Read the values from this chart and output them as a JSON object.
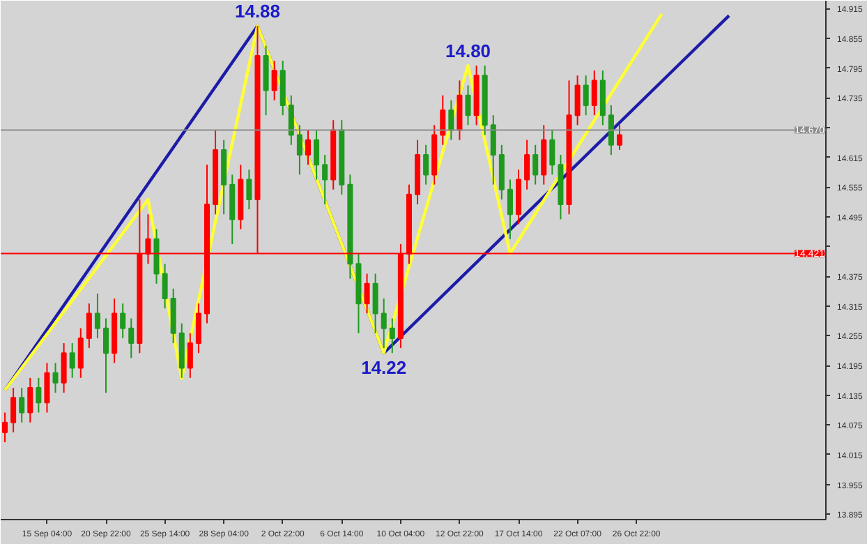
{
  "chart_data": {
    "type": "candlestick",
    "categories": [
      null,
      null,
      null,
      null,
      null,
      "15 Sep 04:00",
      null,
      null,
      null,
      null,
      null,
      null,
      "20 Sep 22:00",
      null,
      null,
      null,
      null,
      null,
      null,
      "25 Sep 14:00",
      null,
      null,
      null,
      null,
      null,
      null,
      "28 Sep 04:00",
      null,
      null,
      null,
      null,
      null,
      null,
      "2 Oct 22:00",
      null,
      null,
      null,
      null,
      null,
      null,
      "6 Oct 14:00",
      null,
      null,
      null,
      null,
      null,
      null,
      "10 Oct 04:00",
      null,
      null,
      null,
      null,
      null,
      null,
      "12 Oct 22:00",
      null,
      null,
      null,
      null,
      null,
      null,
      "17 Oct 14:00",
      null,
      null,
      null,
      null,
      null,
      null,
      "22 Oct 07:00",
      null,
      null,
      null,
      null,
      null,
      null,
      "26 Oct 22:00",
      null,
      null,
      null,
      null,
      null,
      null,
      null,
      null,
      null,
      null,
      null,
      null,
      null,
      null,
      null,
      null,
      null,
      null,
      null,
      null,
      null,
      null
    ],
    "ohlc": [
      [
        14.06,
        14.1,
        14.04,
        14.08
      ],
      [
        14.08,
        14.15,
        14.06,
        14.13
      ],
      [
        14.13,
        14.15,
        14.08,
        14.1
      ],
      [
        14.1,
        14.17,
        14.08,
        14.15
      ],
      [
        14.15,
        14.17,
        14.1,
        14.12
      ],
      [
        14.12,
        14.2,
        14.1,
        14.18
      ],
      [
        14.18,
        14.2,
        14.14,
        14.16
      ],
      [
        14.16,
        14.24,
        14.14,
        14.22
      ],
      [
        14.22,
        14.24,
        14.17,
        14.19
      ],
      [
        14.19,
        14.27,
        14.17,
        14.25
      ],
      [
        14.25,
        14.32,
        14.23,
        14.3
      ],
      [
        14.3,
        14.34,
        14.25,
        14.27
      ],
      [
        14.27,
        14.29,
        14.14,
        14.22
      ],
      [
        14.22,
        14.33,
        14.2,
        14.3
      ],
      [
        14.3,
        14.32,
        14.25,
        14.27
      ],
      [
        14.27,
        14.29,
        14.21,
        14.24
      ],
      [
        14.24,
        14.53,
        14.22,
        14.42
      ],
      [
        14.42,
        14.5,
        14.4,
        14.45
      ],
      [
        14.45,
        14.47,
        14.36,
        14.38
      ],
      [
        14.38,
        14.4,
        14.31,
        14.33
      ],
      [
        14.33,
        14.35,
        14.24,
        14.26
      ],
      [
        14.26,
        14.28,
        14.17,
        14.19
      ],
      [
        14.19,
        14.26,
        14.17,
        14.24
      ],
      [
        14.24,
        14.32,
        14.22,
        14.3
      ],
      [
        14.3,
        14.6,
        14.28,
        14.52
      ],
      [
        14.52,
        14.67,
        14.5,
        14.63
      ],
      [
        14.63,
        14.65,
        14.5,
        14.56
      ],
      [
        14.56,
        14.58,
        14.44,
        14.49
      ],
      [
        14.49,
        14.6,
        14.47,
        14.57
      ],
      [
        14.57,
        14.59,
        14.51,
        14.53
      ],
      [
        14.53,
        14.88,
        14.42,
        14.82
      ],
      [
        14.82,
        14.84,
        14.7,
        14.75
      ],
      [
        14.75,
        14.81,
        14.73,
        14.79
      ],
      [
        14.79,
        14.81,
        14.7,
        14.72
      ],
      [
        14.72,
        14.74,
        14.64,
        14.66
      ],
      [
        14.66,
        14.68,
        14.58,
        14.62
      ],
      [
        14.62,
        14.67,
        14.6,
        14.65
      ],
      [
        14.65,
        14.67,
        14.57,
        14.6
      ],
      [
        14.6,
        14.62,
        14.52,
        14.57
      ],
      [
        14.57,
        14.69,
        14.55,
        14.67
      ],
      [
        14.67,
        14.69,
        14.54,
        14.56
      ],
      [
        14.56,
        14.58,
        14.37,
        14.4
      ],
      [
        14.4,
        14.42,
        14.26,
        14.32
      ],
      [
        14.32,
        14.38,
        14.3,
        14.36
      ],
      [
        14.36,
        14.38,
        14.26,
        14.3
      ],
      [
        14.3,
        14.33,
        14.23,
        14.27
      ],
      [
        14.27,
        14.29,
        14.22,
        14.25
      ],
      [
        14.25,
        14.44,
        14.23,
        14.42
      ],
      [
        14.42,
        14.56,
        14.4,
        14.54
      ],
      [
        14.54,
        14.65,
        14.52,
        14.62
      ],
      [
        14.62,
        14.64,
        14.56,
        14.58
      ],
      [
        14.58,
        14.68,
        14.56,
        14.66
      ],
      [
        14.66,
        14.74,
        14.64,
        14.71
      ],
      [
        14.71,
        14.73,
        14.65,
        14.67
      ],
      [
        14.67,
        14.77,
        14.65,
        14.74
      ],
      [
        14.74,
        14.76,
        14.68,
        14.7
      ],
      [
        14.7,
        14.8,
        14.68,
        14.78
      ],
      [
        14.78,
        14.8,
        14.66,
        14.68
      ],
      [
        14.68,
        14.7,
        14.56,
        14.62
      ],
      [
        14.62,
        14.64,
        14.53,
        14.55
      ],
      [
        14.55,
        14.57,
        14.45,
        14.5
      ],
      [
        14.5,
        14.59,
        14.48,
        14.57
      ],
      [
        14.57,
        14.65,
        14.55,
        14.62
      ],
      [
        14.62,
        14.64,
        14.56,
        14.58
      ],
      [
        14.58,
        14.68,
        14.56,
        14.65
      ],
      [
        14.65,
        14.67,
        14.58,
        14.6
      ],
      [
        14.6,
        14.62,
        14.49,
        14.52
      ],
      [
        14.52,
        14.77,
        14.5,
        14.7
      ],
      [
        14.7,
        14.78,
        14.68,
        14.76
      ],
      [
        14.76,
        14.78,
        14.7,
        14.72
      ],
      [
        14.72,
        14.79,
        14.7,
        14.77
      ],
      [
        14.77,
        14.79,
        14.68,
        14.7
      ],
      [
        14.7,
        14.72,
        14.62,
        14.64
      ],
      [
        14.64,
        14.68,
        14.63,
        14.66
      ],
      null,
      null,
      null,
      null,
      null,
      null,
      null,
      null,
      null,
      null,
      null,
      null,
      null,
      null,
      null,
      null,
      null,
      null,
      null,
      null,
      null,
      null,
      null,
      null
    ],
    "colors": [
      "#ff0000",
      "#ff0000",
      "#1f9a1f",
      "#ff0000",
      "#1f9a1f",
      "#ff0000",
      "#1f9a1f",
      "#ff0000",
      "#1f9a1f",
      "#ff0000",
      "#ff0000",
      "#1f9a1f",
      "#1f9a1f",
      "#ff0000",
      "#1f9a1f",
      "#1f9a1f",
      "#ff0000",
      "#ff0000",
      "#1f9a1f",
      "#1f9a1f",
      "#1f9a1f",
      "#1f9a1f",
      "#ff0000",
      "#ff0000",
      "#ff0000",
      "#ff0000",
      "#1f9a1f",
      "#1f9a1f",
      "#ff0000",
      "#1f9a1f",
      "#ff0000",
      "#1f9a1f",
      "#ff0000",
      "#1f9a1f",
      "#1f9a1f",
      "#1f9a1f",
      "#ff0000",
      "#1f9a1f",
      "#1f9a1f",
      "#ff0000",
      "#1f9a1f",
      "#1f9a1f",
      "#1f9a1f",
      "#ff0000",
      "#1f9a1f",
      "#1f9a1f",
      "#1f9a1f",
      "#ff0000",
      "#ff0000",
      "#ff0000",
      "#1f9a1f",
      "#ff0000",
      "#ff0000",
      "#1f9a1f",
      "#ff0000",
      "#1f9a1f",
      "#ff0000",
      "#1f9a1f",
      "#1f9a1f",
      "#1f9a1f",
      "#1f9a1f",
      "#ff0000",
      "#ff0000",
      "#1f9a1f",
      "#ff0000",
      "#1f9a1f",
      "#1f9a1f",
      "#ff0000",
      "#ff0000",
      "#1f9a1f",
      "#ff0000",
      "#1f9a1f",
      "#1f9a1f",
      "#ff0000",
      null,
      null,
      null,
      null,
      null,
      null,
      null,
      null,
      null,
      null,
      null,
      null,
      null,
      null,
      null,
      null,
      null,
      null,
      null,
      null,
      null,
      null,
      null,
      null
    ],
    "series": [
      {
        "type": "line",
        "color": "#1c1ca8",
        "values": [
          14.145,
          null,
          null,
          null,
          null,
          null,
          null,
          null,
          null,
          null,
          null,
          null,
          null,
          null,
          null,
          null,
          null,
          null,
          null,
          null,
          null,
          null,
          null,
          null,
          null,
          null,
          null,
          null,
          null,
          null,
          14.88,
          null,
          null,
          null,
          null,
          null,
          null,
          null,
          null,
          null,
          null,
          null,
          null,
          null,
          null,
          14.22,
          null,
          null,
          null,
          null,
          null,
          null,
          null,
          null,
          null,
          null,
          null,
          null,
          null,
          null,
          null,
          null,
          null,
          null,
          null,
          null,
          null,
          null,
          null,
          null,
          null,
          null,
          null,
          null,
          null,
          null,
          null,
          null,
          null,
          null,
          null,
          null,
          null,
          null,
          null,
          null,
          14.901,
          null,
          null,
          null,
          null,
          null,
          null,
          null,
          null,
          null,
          null,
          null
        ]
      },
      {
        "type": "line",
        "color": "#ffff33",
        "values": [
          14.145,
          null,
          null,
          null,
          null,
          null,
          null,
          null,
          null,
          null,
          null,
          null,
          null,
          null,
          null,
          null,
          null,
          14.53,
          null,
          null,
          null,
          14.169,
          null,
          null,
          null,
          null,
          null,
          null,
          null,
          null,
          14.88,
          null,
          null,
          null,
          null,
          null,
          null,
          null,
          null,
          null,
          null,
          null,
          null,
          null,
          null,
          14.22,
          null,
          null,
          null,
          null,
          null,
          null,
          null,
          null,
          null,
          14.8,
          null,
          null,
          null,
          null,
          14.421,
          null,
          null,
          null,
          null,
          null,
          null,
          null,
          null,
          null,
          null,
          null,
          null,
          null,
          null,
          null,
          null,
          null,
          14.904,
          null,
          null,
          null,
          null,
          null,
          null,
          null,
          null,
          null,
          null,
          null,
          null,
          null,
          null,
          null,
          null,
          null,
          null,
          null
        ]
      }
    ],
    "ylim": [
      13.884,
      14.931
    ],
    "yticks": [
      13.895,
      13.955,
      14.015,
      14.075,
      14.135,
      14.195,
      14.255,
      14.315,
      14.375,
      {
        "value": 14.435,
        "label": null
      },
      14.495,
      14.555,
      14.615,
      {
        "value": 14.675,
        "label": null
      },
      14.735,
      14.795,
      14.855,
      14.915
    ],
    "ref_lines": [
      {
        "axis": "y",
        "value": 14.67,
        "label": "14.670",
        "color": "#8c8c8c"
      },
      {
        "axis": "y",
        "value": 14.421,
        "label": "14.421",
        "color": "#ff0000"
      }
    ],
    "annotations": [
      {
        "text": "14.88",
        "y": 14.88
      },
      {
        "text": "14.22",
        "y": 14.22
      },
      {
        "text": "14.80",
        "y": 14.8
      }
    ]
  }
}
